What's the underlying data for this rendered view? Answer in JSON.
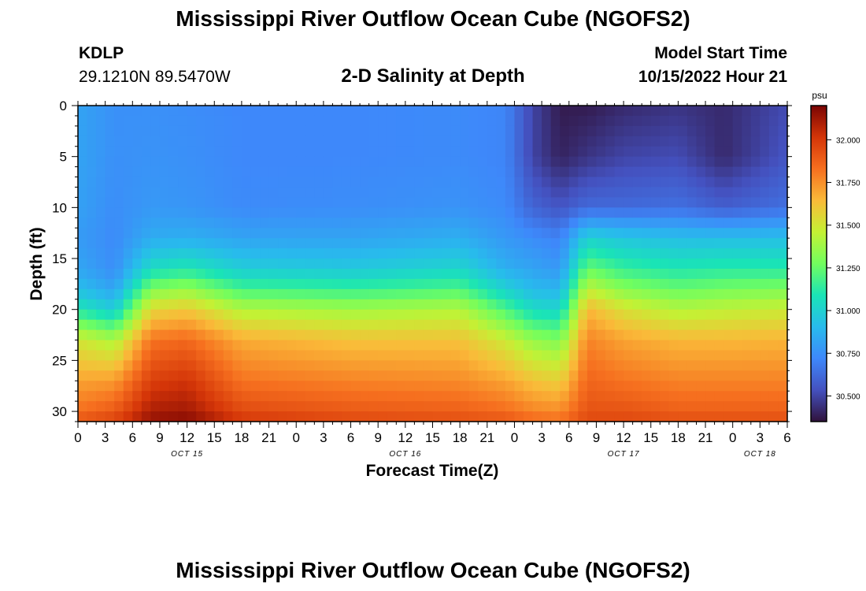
{
  "header": {
    "title": "Mississippi River Outflow Ocean Cube (NGOFS2)",
    "station": "KDLP",
    "coords": "29.1210N  89.5470W",
    "subtitle": "2-D Salinity at Depth",
    "model_start_label": "Model Start Time",
    "model_start_value": "10/15/2022 Hour 21"
  },
  "footer": {
    "title": "Mississippi River Outflow Ocean Cube (NGOFS2)"
  },
  "chart_data": {
    "type": "heatmap",
    "xlabel": "Forecast Time(Z)",
    "ylabel": "Depth (ft)",
    "x_tick_labels": [
      "0",
      "3",
      "6",
      "9",
      "12",
      "15",
      "18",
      "21",
      "0",
      "3",
      "6",
      "9",
      "12",
      "15",
      "18",
      "21",
      "0",
      "3",
      "6",
      "9",
      "12",
      "15",
      "18",
      "21",
      "0",
      "3",
      "6"
    ],
    "x_range_hours": [
      0,
      78
    ],
    "day_labels": [
      {
        "label": "OCT 15",
        "hour": 12
      },
      {
        "label": "OCT 16",
        "hour": 36
      },
      {
        "label": "OCT 17",
        "hour": 60
      },
      {
        "label": "OCT 18",
        "hour": 75
      }
    ],
    "y_ticks": [
      0,
      5,
      10,
      15,
      20,
      25,
      30
    ],
    "y_range_ft": [
      0,
      31
    ],
    "y_inverted": true,
    "colorbar": {
      "unit": "psu",
      "ticks": [
        "32.000",
        "31.750",
        "31.500",
        "31.250",
        "31.000",
        "30.750",
        "30.500"
      ],
      "range": [
        30.35,
        32.2
      ],
      "colormap": "turbo"
    },
    "salinity_at_depth": {
      "depths_ft": [
        0,
        5,
        10,
        13,
        16,
        18,
        20,
        23,
        27,
        30,
        31
      ],
      "profiles": [
        {
          "hour": 0,
          "values": [
            30.82,
            30.82,
            30.81,
            30.79,
            30.83,
            30.92,
            31.1,
            31.5,
            31.7,
            31.83,
            31.92
          ]
        },
        {
          "hour": 4,
          "values": [
            30.75,
            30.75,
            30.74,
            30.73,
            30.74,
            30.82,
            30.98,
            31.4,
            31.72,
            31.9,
            31.98
          ]
        },
        {
          "hour": 8,
          "values": [
            30.75,
            30.76,
            30.78,
            30.85,
            31.05,
            31.3,
            31.55,
            31.82,
            31.98,
            32.1,
            32.15
          ]
        },
        {
          "hour": 12,
          "values": [
            30.74,
            30.75,
            30.77,
            30.86,
            31.1,
            31.35,
            31.6,
            31.85,
            32.02,
            32.12,
            32.18
          ]
        },
        {
          "hour": 18,
          "values": [
            30.72,
            30.72,
            30.73,
            30.82,
            30.98,
            31.18,
            31.42,
            31.68,
            31.82,
            31.95,
            32.02
          ]
        },
        {
          "hour": 30,
          "values": [
            30.72,
            30.72,
            30.74,
            30.82,
            30.96,
            31.15,
            31.38,
            31.62,
            31.78,
            31.9,
            31.96
          ]
        },
        {
          "hour": 42,
          "values": [
            30.73,
            30.73,
            30.76,
            30.86,
            31.02,
            31.2,
            31.42,
            31.62,
            31.76,
            31.88,
            31.94
          ]
        },
        {
          "hour": 47,
          "values": [
            30.71,
            30.71,
            30.73,
            30.78,
            30.86,
            31.0,
            31.2,
            31.48,
            31.7,
            31.84,
            31.92
          ]
        },
        {
          "hour": 50,
          "values": [
            30.5,
            30.5,
            30.6,
            30.74,
            30.82,
            30.9,
            31.05,
            31.35,
            31.62,
            31.78,
            31.86
          ]
        },
        {
          "hour": 53,
          "values": [
            30.38,
            30.4,
            30.55,
            30.7,
            30.78,
            30.88,
            31.02,
            31.3,
            31.58,
            31.76,
            31.84
          ]
        },
        {
          "hour": 56,
          "values": [
            30.38,
            30.45,
            30.62,
            31.0,
            31.25,
            31.45,
            31.65,
            31.78,
            31.86,
            31.92,
            31.96
          ]
        },
        {
          "hour": 60,
          "values": [
            30.42,
            30.5,
            30.62,
            30.95,
            31.15,
            31.32,
            31.52,
            31.7,
            31.82,
            31.92,
            31.96
          ]
        },
        {
          "hour": 66,
          "values": [
            30.45,
            30.52,
            30.64,
            30.92,
            31.1,
            31.25,
            31.42,
            31.65,
            31.78,
            31.88,
            31.94
          ]
        },
        {
          "hour": 71,
          "values": [
            30.42,
            30.42,
            30.58,
            30.92,
            31.12,
            31.28,
            31.45,
            31.65,
            31.78,
            31.88,
            31.94
          ]
        },
        {
          "hour": 78,
          "values": [
            30.52,
            30.55,
            30.64,
            30.92,
            31.12,
            31.3,
            31.48,
            31.66,
            31.78,
            31.88,
            31.94
          ]
        }
      ]
    }
  }
}
